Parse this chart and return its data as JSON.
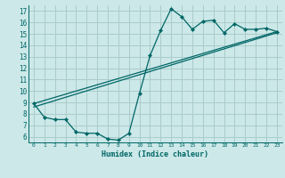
{
  "background_color": "#cce8e8",
  "grid_color": "#aacccc",
  "line_color": "#006666",
  "xlabel": "Humidex (Indice chaleur)",
  "xlim": [
    -0.5,
    23.5
  ],
  "ylim": [
    5.5,
    17.5
  ],
  "xticks": [
    0,
    1,
    2,
    3,
    4,
    5,
    6,
    7,
    8,
    9,
    10,
    11,
    12,
    13,
    14,
    15,
    16,
    17,
    18,
    19,
    20,
    21,
    22,
    23
  ],
  "yticks": [
    6,
    7,
    8,
    9,
    10,
    11,
    12,
    13,
    14,
    15,
    16,
    17
  ],
  "curve1_x": [
    0,
    1,
    2,
    3,
    4,
    5,
    6,
    7,
    8,
    9,
    10,
    11,
    12,
    13,
    14,
    15,
    16,
    17,
    18,
    19,
    20,
    21,
    22,
    23
  ],
  "curve1_y": [
    8.9,
    7.7,
    7.5,
    7.5,
    6.4,
    6.3,
    6.3,
    5.8,
    5.7,
    6.3,
    9.8,
    13.1,
    15.3,
    17.2,
    16.5,
    15.4,
    16.1,
    16.2,
    15.1,
    15.9,
    15.4,
    15.4,
    15.5,
    15.2
  ],
  "curve2_x": [
    0,
    23
  ],
  "curve2_y": [
    8.6,
    15.1
  ],
  "curve3_x": [
    0,
    23
  ],
  "curve3_y": [
    8.9,
    15.2
  ]
}
